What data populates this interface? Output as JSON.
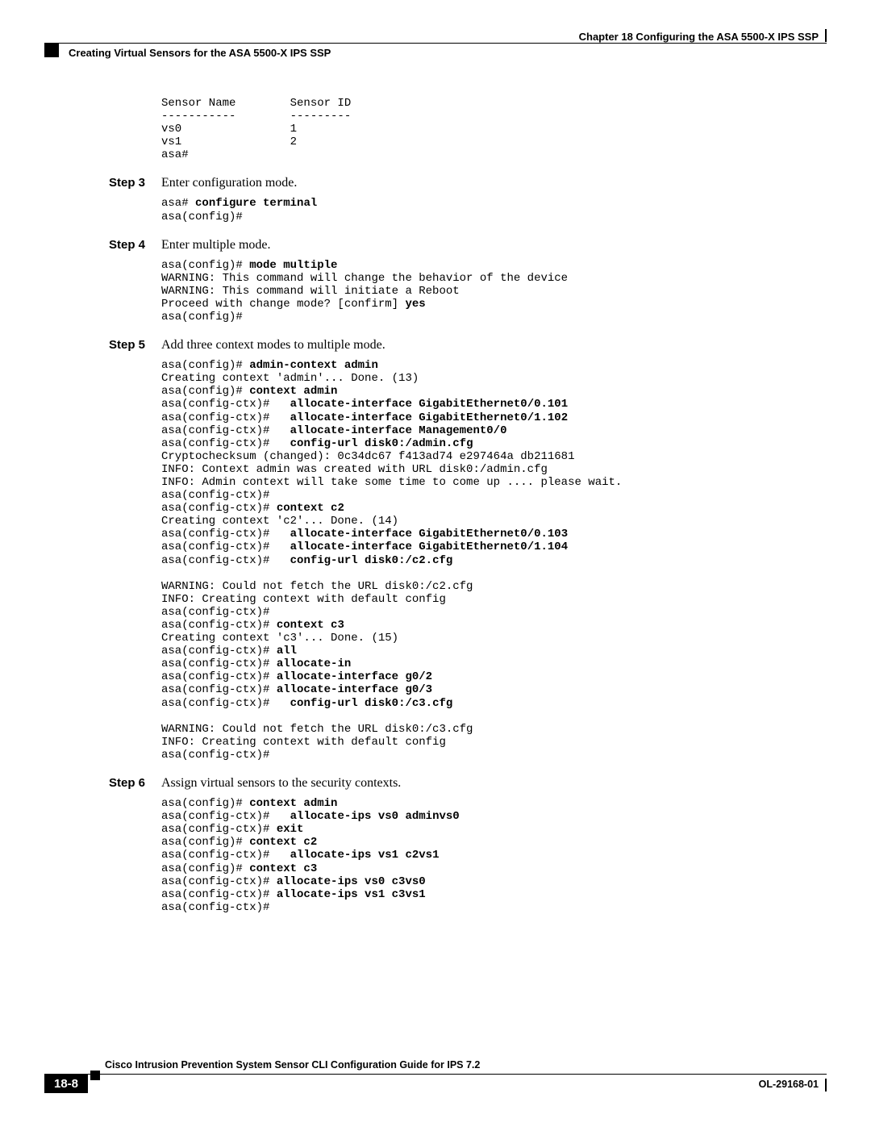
{
  "header": {
    "chapter": "Chapter 18    Configuring the ASA 5500-X IPS SSP",
    "section": "Creating Virtual Sensors for the ASA 5500-X IPS SSP"
  },
  "code_top": "Sensor Name        Sensor ID\n-----------        ---------\nvs0                1\nvs1                2\nasa#",
  "step3": {
    "label": "Step 3",
    "text": "Enter configuration mode.",
    "code_p1": "asa# ",
    "code_b1": "configure terminal",
    "code_p2": "\nasa(config)#"
  },
  "step4": {
    "label": "Step 4",
    "text": "Enter multiple mode.",
    "code_p1": "asa(config)# ",
    "code_b1": "mode multiple",
    "code_p2": "\nWARNING: This command will change the behavior of the device\nWARNING: This command will initiate a Reboot\nProceed with change mode? [confirm] ",
    "code_b2": "yes",
    "code_p3": "\nasa(config)#"
  },
  "step5": {
    "label": "Step 5",
    "text": "Add three context modes to multiple mode.",
    "l1": "asa(config)# ",
    "b1": "admin-context admin",
    "l2": "\nCreating context 'admin'... Done. (13)\nasa(config)# ",
    "b2": "context admin",
    "l3": "\nasa(config-ctx)#   ",
    "b3": "allocate-interface GigabitEthernet0/0.101",
    "l4": "\nasa(config-ctx)#   ",
    "b4": "allocate-interface GigabitEthernet0/1.102",
    "l5": "\nasa(config-ctx)#   ",
    "b5": "allocate-interface Management0/0",
    "l6": "\nasa(config-ctx)#   ",
    "b6": "config-url disk0:/admin.cfg",
    "l7": "\nCryptochecksum (changed): 0c34dc67 f413ad74 e297464a db211681\nINFO: Context admin was created with URL disk0:/admin.cfg\nINFO: Admin context will take some time to come up .... please wait.\nasa(config-ctx)#\nasa(config-ctx)# ",
    "b7": "context c2",
    "l8": "\nCreating context 'c2'... Done. (14)\nasa(config-ctx)#   ",
    "b8": "allocate-interface GigabitEthernet0/0.103",
    "l9": "\nasa(config-ctx)#   ",
    "b9": "allocate-interface GigabitEthernet0/1.104",
    "l10": "\nasa(config-ctx)#   ",
    "b10": "config-url disk0:/c2.cfg",
    "l11": "\n\nWARNING: Could not fetch the URL disk0:/c2.cfg\nINFO: Creating context with default config\nasa(config-ctx)#\nasa(config-ctx)# ",
    "b11": "context c3",
    "l12": "\nCreating context 'c3'... Done. (15)\nasa(config-ctx)# ",
    "b12": "all",
    "l13": "\nasa(config-ctx)# ",
    "b13": "allocate-in",
    "l14": "\nasa(config-ctx)# ",
    "b14": "allocate-interface g0/2",
    "l15": "\nasa(config-ctx)# ",
    "b15": "allocate-interface g0/3",
    "l16": "\nasa(config-ctx)#   ",
    "b16": "config-url disk0:/c3.cfg",
    "l17": "\n\nWARNING: Could not fetch the URL disk0:/c3.cfg\nINFO: Creating context with default config\nasa(config-ctx)#"
  },
  "step6": {
    "label": "Step 6",
    "text": "Assign virtual sensors to the security contexts.",
    "l1": "asa(config)# ",
    "b1": "context admin",
    "l2": "\nasa(config-ctx)#   ",
    "b2": "allocate-ips vs0 adminvs0",
    "l3": "\nasa(config-ctx)# ",
    "b3": "exit",
    "l4": "\nasa(config)# ",
    "b4": "context c2",
    "l5": "\nasa(config-ctx)#   ",
    "b5": "allocate-ips vs1 c2vs1",
    "l6": "\nasa(config)# ",
    "b6": "context c3",
    "l7": "\nasa(config-ctx)# ",
    "b7": "allocate-ips vs0 c3vs0",
    "l8": "\nasa(config-ctx)# ",
    "b8": "allocate-ips vs1 c3vs1",
    "l9": "\nasa(config-ctx)#"
  },
  "footer": {
    "title": "Cisco Intrusion Prevention System Sensor CLI Configuration Guide for IPS 7.2",
    "page": "18-8",
    "ol": "OL-29168-01"
  }
}
